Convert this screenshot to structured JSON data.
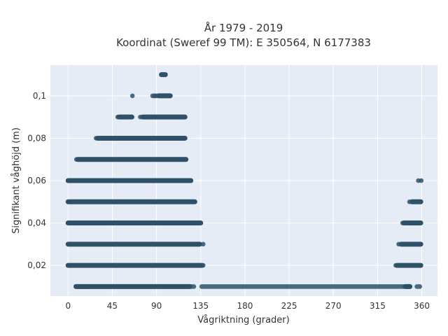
{
  "chart_data": {
    "type": "scatter",
    "title": [
      "År 1979 - 2019",
      "Koordinat (Sweref 99 TM): E 350564, N 6177383"
    ],
    "xlabel": "Vågriktning (grader)",
    "ylabel": "Signifikant våghöjd (m)",
    "xlim": [
      -18,
      376
    ],
    "ylim": [
      0.0055,
      0.1145
    ],
    "xticks": [
      0,
      45,
      90,
      135,
      180,
      225,
      270,
      315,
      360
    ],
    "xtick_labels": [
      "0",
      "45",
      "90",
      "135",
      "180",
      "225",
      "270",
      "315",
      "360"
    ],
    "yticks": [
      0.02,
      0.04,
      0.06,
      0.08,
      0.1
    ],
    "ytick_labels": [
      "0,02",
      "0,04",
      "0,06",
      "0,08",
      "0,1"
    ],
    "grid": true,
    "background": "#e5ecf6",
    "marker_color": "#2f5168",
    "bands": [
      {
        "y": 0.01,
        "segments": [
          [
            8,
            124
          ],
          [
            343,
            348
          ]
        ],
        "isolated": [
          [
            9,
            10
          ],
          [
            13,
            16
          ],
          [
            17,
            20
          ],
          [
            22,
            24
          ],
          [
            27,
            28
          ],
          [
            29,
            30
          ],
          [
            33,
            35
          ],
          [
            40,
            42
          ],
          [
            126,
            128
          ],
          [
            136,
            341
          ],
          [
            355,
            358
          ]
        ]
      },
      {
        "y": 0.02,
        "segments": [
          [
            0,
            136
          ],
          [
            335,
            359
          ]
        ],
        "isolated": [
          [
            137,
            138
          ],
          [
            333,
            334
          ]
        ]
      },
      {
        "y": 0.03,
        "segments": [
          [
            0,
            134
          ],
          [
            339,
            359
          ]
        ],
        "isolated": [
          [
            137,
            138
          ],
          [
            336,
            337
          ]
        ]
      },
      {
        "y": 0.04,
        "segments": [
          [
            0,
            135
          ],
          [
            342,
            359
          ]
        ],
        "isolated": [
          [
            340,
            341
          ]
        ]
      },
      {
        "y": 0.05,
        "segments": [
          [
            0,
            129
          ],
          [
            350,
            359
          ]
        ],
        "isolated": [
          [
            347,
            348
          ]
        ]
      },
      {
        "y": 0.06,
        "segments": [
          [
            0,
            125
          ]
        ],
        "isolated": [
          [
            356,
            357
          ],
          [
            359,
            360
          ]
        ]
      },
      {
        "y": 0.07,
        "segments": [
          [
            10,
            120
          ]
        ],
        "isolated": [
          [
            8,
            9
          ]
        ]
      },
      {
        "y": 0.08,
        "segments": [
          [
            30,
            119
          ]
        ],
        "isolated": [
          [
            28,
            29
          ],
          [
            31,
            33
          ]
        ]
      },
      {
        "y": 0.09,
        "segments": [
          [
            52,
            65
          ],
          [
            76,
            119
          ]
        ],
        "isolated": [
          [
            50,
            51
          ],
          [
            73,
            74
          ]
        ]
      },
      {
        "y": 0.1,
        "segments": [
          [
            92,
            104
          ]
        ],
        "isolated": [
          [
            65,
            66
          ],
          [
            86,
            88
          ],
          [
            88,
            90
          ]
        ]
      },
      {
        "y": 0.11,
        "segments": [
          [
            95,
            99
          ]
        ],
        "isolated": []
      }
    ]
  }
}
